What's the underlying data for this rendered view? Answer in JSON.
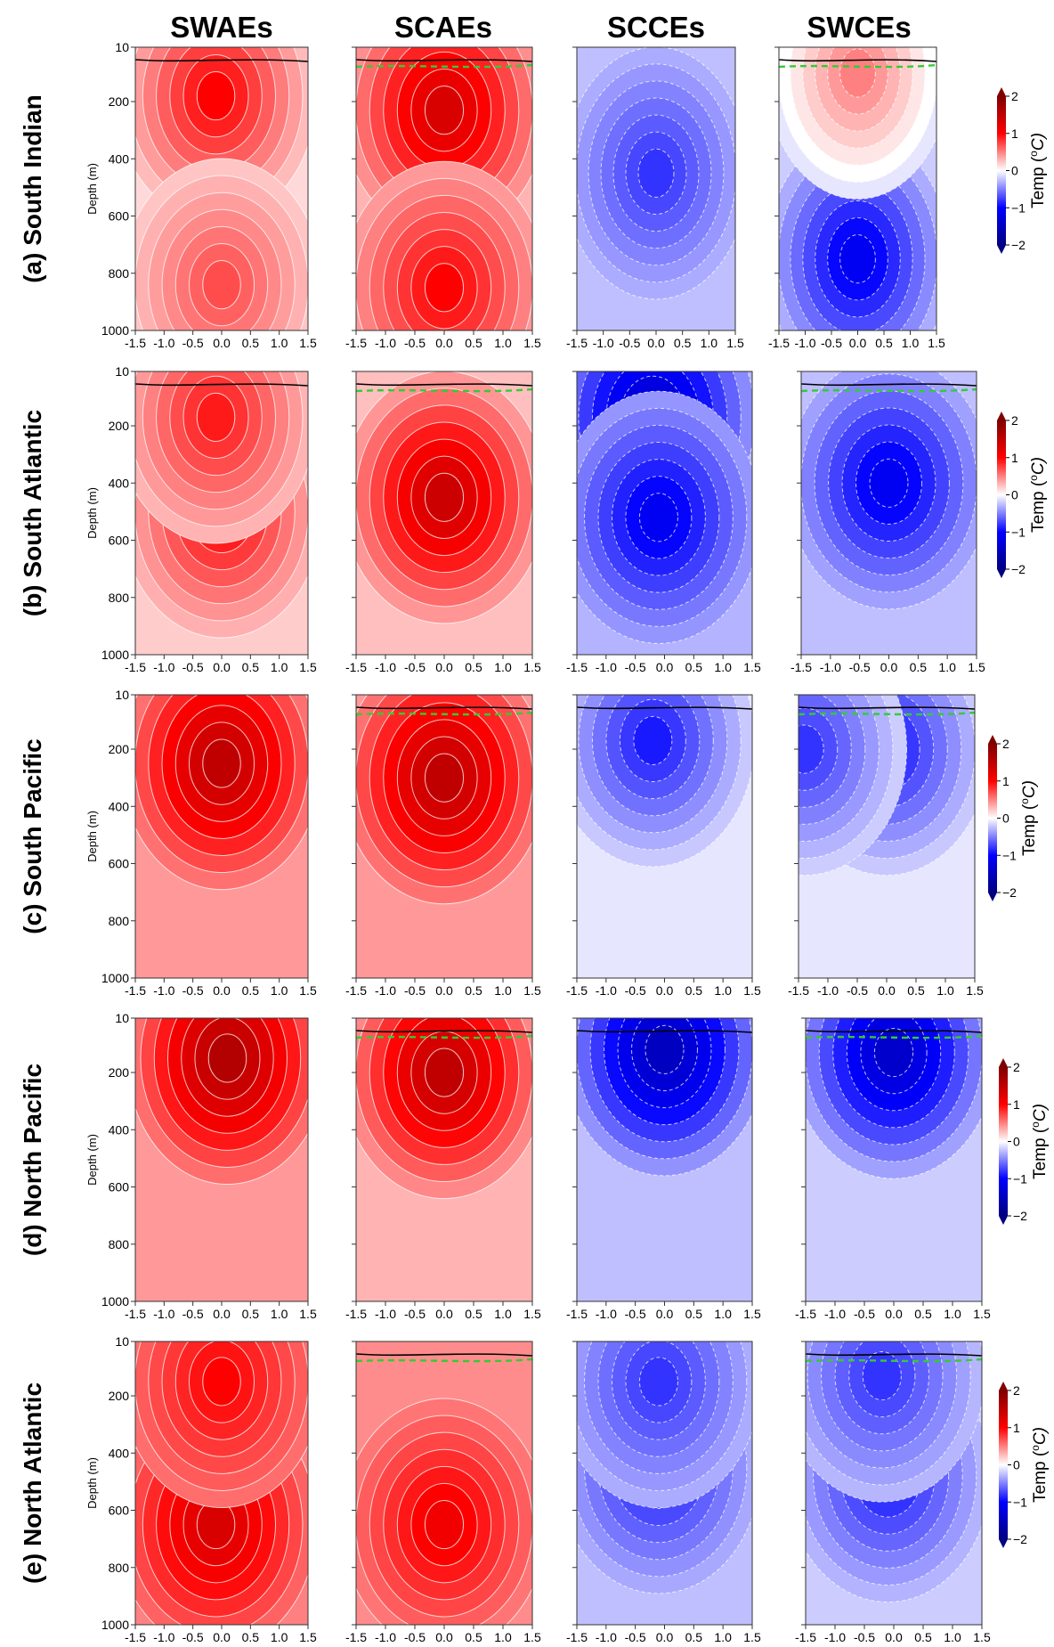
{
  "chart_data": {
    "type": "heatmap",
    "title": "",
    "column_titles": [
      "SWAEs",
      "SCAEs",
      "SCCEs",
      "SWCEs"
    ],
    "row_labels": [
      "(a) South Indian",
      "(b) South Atlantic",
      "(c) South Pacific",
      "(d) North Pacific",
      "(e) North Atlantic"
    ],
    "ylabel": "Depth (m)",
    "xlabel": "",
    "y_ticks": [
      "10",
      "200",
      "400",
      "600",
      "800",
      "1000"
    ],
    "y_tick_values": [
      10,
      200,
      400,
      600,
      800,
      1000
    ],
    "x_ticks": [
      "-1.5",
      "-1.0",
      "-0.5",
      "0.0",
      "0.5",
      "1.0",
      "1.5"
    ],
    "x_tick_values": [
      -1.5,
      -1.0,
      -0.5,
      0.0,
      0.5,
      1.0,
      1.5
    ],
    "xlim": [
      -1.5,
      1.5
    ],
    "ylim": [
      1000,
      10
    ],
    "colorbar": {
      "label": "Temp (°C)",
      "label_main": "Temp (",
      "label_sup": "o",
      "label_unit": "C)",
      "ticks": [
        "2",
        "1",
        "0",
        "−1",
        "−2"
      ],
      "tick_values": [
        2,
        1,
        0,
        -1,
        -2
      ],
      "range": [
        -2,
        2
      ],
      "colormap": "seismic",
      "extend": "both"
    },
    "colors": {
      "positive": "#ff0000",
      "negative": "#0000ff",
      "zero_contour": "#000000",
      "mld_line": "#33cc33",
      "contour": "#ffffff"
    },
    "panels": [
      {
        "row": 0,
        "col": 0,
        "sign": 1,
        "cores": [
          {
            "x": -0.1,
            "depth": 180,
            "value": 1.0
          },
          {
            "x": 0.0,
            "depth": 840,
            "value": 0.7
          }
        ],
        "background": 0.15,
        "zero_contour": true,
        "mld_line": false
      },
      {
        "row": 0,
        "col": 1,
        "sign": 1,
        "cores": [
          {
            "x": 0.0,
            "depth": 230,
            "value": 1.3
          },
          {
            "x": 0.0,
            "depth": 850,
            "value": 1.0
          }
        ],
        "background": 0.3,
        "zero_contour": true,
        "mld_line": true
      },
      {
        "row": 0,
        "col": 2,
        "sign": -1,
        "cores": [
          {
            "x": 0.0,
            "depth": 450,
            "value": -0.8
          }
        ],
        "background": -0.25,
        "zero_contour": false,
        "mld_line": false
      },
      {
        "row": 0,
        "col": 3,
        "sign": -1,
        "cores": [
          {
            "x": 0.0,
            "depth": 750,
            "value": -1.1
          },
          {
            "x": 0.0,
            "depth": 100,
            "value": 0.5
          }
        ],
        "background": -0.2,
        "zero_contour": true,
        "mld_line": true
      },
      {
        "row": 1,
        "col": 0,
        "sign": 1,
        "cores": [
          {
            "x": 0.0,
            "depth": 500,
            "value": 1.0
          },
          {
            "x": -0.1,
            "depth": 170,
            "value": 0.9
          }
        ],
        "background": 0.2,
        "zero_contour": true,
        "mld_line": false
      },
      {
        "row": 1,
        "col": 1,
        "sign": 1,
        "cores": [
          {
            "x": 0.0,
            "depth": 450,
            "value": 1.4
          }
        ],
        "background": 0.25,
        "zero_contour": true,
        "mld_line": true
      },
      {
        "row": 1,
        "col": 2,
        "sign": -1,
        "cores": [
          {
            "x": -0.2,
            "depth": 170,
            "value": -1.4
          },
          {
            "x": -0.1,
            "depth": 520,
            "value": -1.1
          }
        ],
        "background": -0.3,
        "zero_contour": false,
        "mld_line": false
      },
      {
        "row": 1,
        "col": 3,
        "sign": -1,
        "cores": [
          {
            "x": 0.0,
            "depth": 400,
            "value": -1.1
          }
        ],
        "background": -0.25,
        "zero_contour": true,
        "mld_line": true
      },
      {
        "row": 2,
        "col": 0,
        "sign": 1,
        "cores": [
          {
            "x": 0.0,
            "depth": 250,
            "value": 1.5
          }
        ],
        "background": 0.4,
        "zero_contour": false,
        "mld_line": false
      },
      {
        "row": 2,
        "col": 1,
        "sign": 1,
        "cores": [
          {
            "x": 0.0,
            "depth": 300,
            "value": 1.5
          }
        ],
        "background": 0.4,
        "zero_contour": true,
        "mld_line": true
      },
      {
        "row": 2,
        "col": 2,
        "sign": -1,
        "cores": [
          {
            "x": -0.2,
            "depth": 170,
            "value": -0.9
          }
        ],
        "background": -0.1,
        "zero_contour": true,
        "mld_line": false
      },
      {
        "row": 2,
        "col": 3,
        "sign": -1,
        "cores": [
          {
            "x": 0.0,
            "depth": 200,
            "value": -0.9
          },
          {
            "x": -1.4,
            "depth": 200,
            "value": -0.8
          }
        ],
        "background": -0.1,
        "zero_contour": true,
        "mld_line": true
      },
      {
        "row": 3,
        "col": 0,
        "sign": 1,
        "cores": [
          {
            "x": 0.1,
            "depth": 150,
            "value": 1.6
          }
        ],
        "background": 0.4,
        "zero_contour": false,
        "mld_line": false
      },
      {
        "row": 3,
        "col": 1,
        "sign": 1,
        "cores": [
          {
            "x": 0.0,
            "depth": 200,
            "value": 1.5
          }
        ],
        "background": 0.3,
        "zero_contour": true,
        "mld_line": true
      },
      {
        "row": 3,
        "col": 2,
        "sign": -1,
        "cores": [
          {
            "x": 0.0,
            "depth": 120,
            "value": -1.5
          }
        ],
        "background": -0.25,
        "zero_contour": true,
        "mld_line": false
      },
      {
        "row": 3,
        "col": 3,
        "sign": -1,
        "cores": [
          {
            "x": 0.0,
            "depth": 130,
            "value": -1.4
          }
        ],
        "background": -0.2,
        "zero_contour": true,
        "mld_line": true
      },
      {
        "row": 4,
        "col": 0,
        "sign": 1,
        "cores": [
          {
            "x": -0.1,
            "depth": 650,
            "value": 1.3
          },
          {
            "x": 0.0,
            "depth": 150,
            "value": 1.0
          }
        ],
        "background": 0.5,
        "zero_contour": false,
        "mld_line": false
      },
      {
        "row": 4,
        "col": 1,
        "sign": 1,
        "cores": [
          {
            "x": 0.0,
            "depth": 650,
            "value": 1.1
          }
        ],
        "background": 0.45,
        "zero_contour": true,
        "mld_line": true
      },
      {
        "row": 4,
        "col": 2,
        "sign": -1,
        "cores": [
          {
            "x": -0.1,
            "depth": 450,
            "value": -0.9
          },
          {
            "x": -0.1,
            "depth": 150,
            "value": -0.8
          }
        ],
        "background": -0.25,
        "zero_contour": false,
        "mld_line": false
      },
      {
        "row": 4,
        "col": 3,
        "sign": -1,
        "cores": [
          {
            "x": -0.1,
            "depth": 480,
            "value": -0.9
          },
          {
            "x": -0.2,
            "depth": 130,
            "value": -0.8
          }
        ],
        "background": -0.2,
        "zero_contour": true,
        "mld_line": true
      }
    ]
  }
}
